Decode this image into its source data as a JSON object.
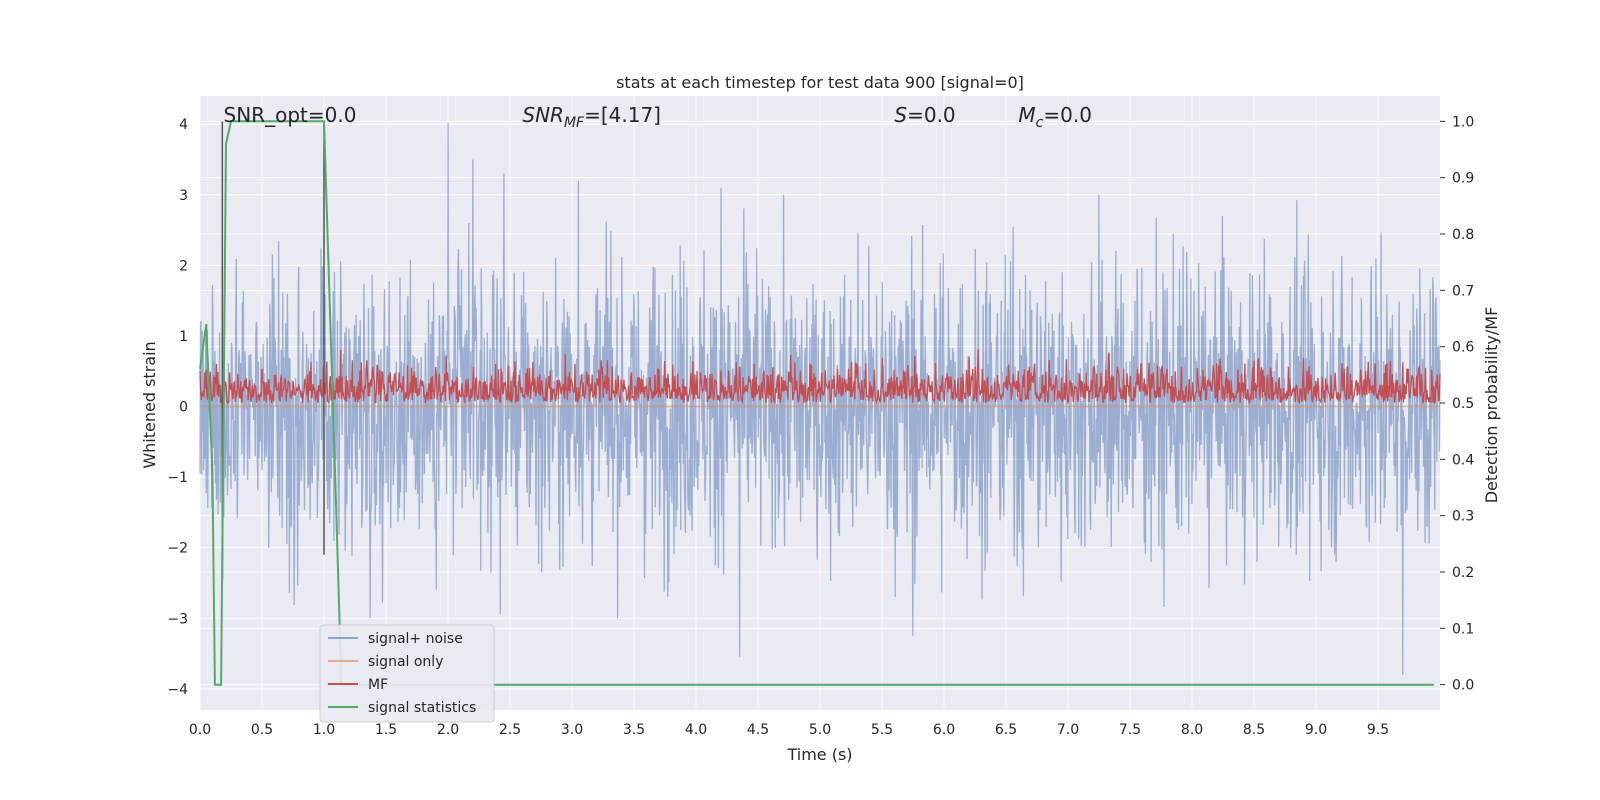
{
  "chart_data": {
    "type": "line",
    "title": "stats at each timestep for test data 900 [signal=0]",
    "xlabel": "Time (s)",
    "ylabel": "Whitened strain",
    "ylabel_right": "Detection probability/MF",
    "xlim": [
      0.0,
      10.0
    ],
    "ylim": [
      -4.3,
      4.4
    ],
    "ylim_right": [
      -0.045,
      1.045
    ],
    "x_ticks": [
      "0.0",
      "0.5",
      "1.0",
      "1.5",
      "2.0",
      "2.5",
      "3.0",
      "3.5",
      "4.0",
      "4.5",
      "5.0",
      "5.5",
      "6.0",
      "6.5",
      "7.0",
      "7.5",
      "8.0",
      "8.5",
      "9.0",
      "9.5"
    ],
    "y_ticks": [
      "4",
      "3",
      "2",
      "1",
      "0",
      "−1",
      "−2",
      "−3",
      "−4"
    ],
    "y_ticks_right": [
      "1.0",
      "0.9",
      "0.8",
      "0.7",
      "0.6",
      "0.5",
      "0.4",
      "0.3",
      "0.2",
      "0.1",
      "0.0"
    ],
    "grid": true,
    "legend_position": "lower-left",
    "annotations": [
      {
        "id": "snr-opt",
        "text": "SNR_opt=0.0",
        "x": 0.19
      },
      {
        "id": "snr-mf",
        "prefix": "SNR",
        "sub": "MF",
        "suffix": "=[4.17]",
        "x": 2.6
      },
      {
        "id": "s",
        "prefix": "S",
        "suffix": "=0.0",
        "x": 5.6
      },
      {
        "id": "mc",
        "prefix": "M",
        "sub": "c",
        "suffix": "=0.0",
        "x": 6.6
      }
    ],
    "vertical_lines": [
      0.18,
      1.0
    ],
    "series": [
      {
        "name": "signal+ noise",
        "color": "#4c72b0",
        "axis": "left",
        "description": "whitened noise, roughly symmetric about 0, peaks reaching about +4.0 near t=2.0 and about -3.8 near t=9.7",
        "amplitude": 1.3,
        "peaks": [
          {
            "x": 2.0,
            "y": 4.02
          },
          {
            "x": 9.7,
            "y": -3.8
          },
          {
            "x": 4.35,
            "y": -3.55
          },
          {
            "x": 3.05,
            "y": 3.2
          },
          {
            "x": 2.2,
            "y": 3.5
          },
          {
            "x": 2.45,
            "y": 3.3
          },
          {
            "x": 4.2,
            "y": 3.1
          },
          {
            "x": 7.25,
            "y": 3.0
          },
          {
            "x": 5.75,
            "y": -3.25
          }
        ]
      },
      {
        "name": "signal only",
        "color": "#dd8452",
        "axis": "left",
        "x": [
          0.0,
          10.0
        ],
        "y": [
          0.0,
          0.0
        ]
      },
      {
        "name": "MF",
        "color": "#c44e52",
        "axis": "right",
        "description": "matched-filter output fluctuating between about 0.5 and 0.6",
        "baseline": 0.5,
        "max": 0.6
      },
      {
        "name": "signal statistics",
        "color": "#55a868",
        "axis": "right",
        "x": [
          0.0,
          0.05,
          0.1,
          0.12,
          0.17,
          0.21,
          0.25,
          1.0,
          1.1,
          1.14,
          9.95
        ],
        "y": [
          0.56,
          0.64,
          0.38,
          0.0,
          0.0,
          0.96,
          1.0,
          1.0,
          0.3,
          0.0,
          0.0
        ]
      }
    ]
  }
}
